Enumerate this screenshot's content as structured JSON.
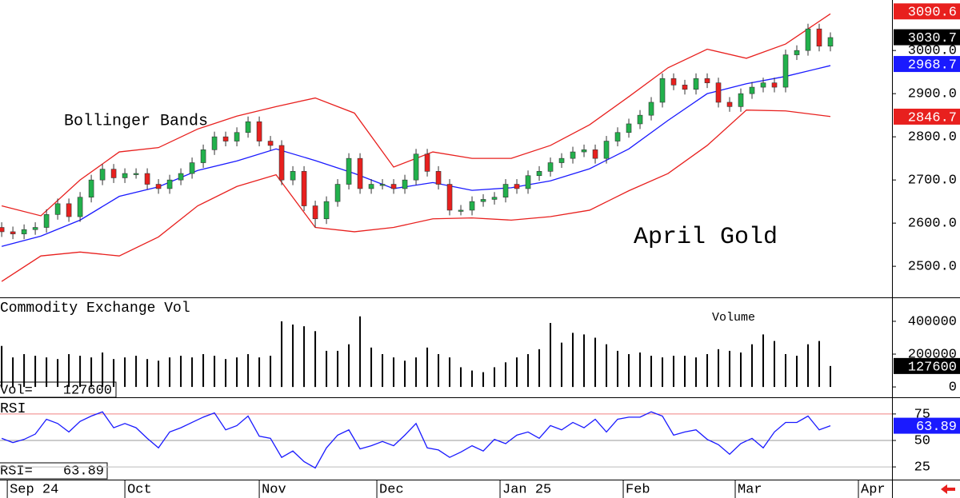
{
  "chart_data": [
    {
      "type": "candlestick",
      "annotations": [
        "Bollinger Bands",
        "April Gold"
      ],
      "ylim": [
        2428,
        3117
      ],
      "yticks": [
        {
          "value": 2500,
          "label": "2500.0"
        },
        {
          "value": 2600,
          "label": "2600.0"
        },
        {
          "value": 2700,
          "label": "2700.0"
        },
        {
          "value": 2800,
          "label": "2800.0"
        },
        {
          "value": 2900,
          "label": "2900.0"
        },
        {
          "value": 3000,
          "label": "3000.0"
        }
      ],
      "up_color": "#22b14c",
      "down_color": "#e8201e",
      "x": [
        0,
        2,
        4,
        6,
        8,
        10,
        12,
        14,
        16,
        18,
        20,
        22,
        24,
        26,
        28,
        30,
        32,
        34,
        36,
        38,
        40,
        42,
        44,
        46,
        48,
        50,
        52,
        54,
        56,
        58,
        60,
        62,
        64,
        66,
        68,
        70,
        72,
        74,
        76,
        78,
        80,
        82,
        84,
        86,
        88,
        90,
        92,
        94,
        96,
        98,
        100,
        102,
        104,
        106,
        108,
        110,
        112,
        114,
        116,
        118,
        120,
        122,
        124,
        126,
        128,
        130,
        132,
        134,
        136,
        138,
        140,
        142,
        144,
        146,
        148
      ],
      "open": [
        2590,
        2580,
        2575,
        2585,
        2590,
        2620,
        2645,
        2615,
        2660,
        2700,
        2725,
        2705,
        2715,
        2715,
        2690,
        2680,
        2700,
        2715,
        2740,
        2770,
        2800,
        2790,
        2810,
        2835,
        2790,
        2780,
        2700,
        2720,
        2640,
        2610,
        2650,
        2690,
        2750,
        2680,
        2690,
        2690,
        2680,
        2700,
        2760,
        2720,
        2690,
        2630,
        2630,
        2650,
        2655,
        2660,
        2690,
        2680,
        2710,
        2720,
        2740,
        2750,
        2765,
        2770,
        2750,
        2790,
        2810,
        2830,
        2850,
        2880,
        2935,
        2920,
        2910,
        2935,
        2925,
        2880,
        2870,
        2900,
        2915,
        2925,
        2915,
        2990,
        3000,
        3050,
        3010
      ],
      "high": [
        2602,
        2592,
        2597,
        2602,
        2632,
        2657,
        2657,
        2672,
        2712,
        2737,
        2737,
        2727,
        2727,
        2727,
        2702,
        2712,
        2727,
        2752,
        2782,
        2812,
        2812,
        2822,
        2847,
        2847,
        2802,
        2792,
        2732,
        2732,
        2652,
        2662,
        2702,
        2762,
        2762,
        2702,
        2702,
        2702,
        2712,
        2772,
        2772,
        2732,
        2702,
        2642,
        2662,
        2667,
        2672,
        2702,
        2702,
        2722,
        2732,
        2752,
        2762,
        2777,
        2782,
        2782,
        2802,
        2822,
        2842,
        2862,
        2892,
        2947,
        2947,
        2932,
        2947,
        2947,
        2937,
        2892,
        2912,
        2927,
        2937,
        2937,
        3002,
        3012,
        3062,
        3062,
        3042
      ],
      "low": [
        2568,
        2563,
        2563,
        2573,
        2578,
        2608,
        2603,
        2603,
        2648,
        2688,
        2693,
        2693,
        2703,
        2678,
        2668,
        2668,
        2688,
        2703,
        2728,
        2758,
        2778,
        2778,
        2798,
        2778,
        2768,
        2688,
        2688,
        2628,
        2590,
        2598,
        2638,
        2678,
        2668,
        2668,
        2678,
        2668,
        2668,
        2688,
        2708,
        2678,
        2618,
        2618,
        2618,
        2638,
        2643,
        2648,
        2668,
        2668,
        2698,
        2708,
        2728,
        2738,
        2753,
        2738,
        2738,
        2778,
        2798,
        2818,
        2838,
        2868,
        2908,
        2898,
        2898,
        2913,
        2868,
        2858,
        2858,
        2888,
        2903,
        2903,
        2903,
        2978,
        2988,
        2998,
        2998
      ],
      "close": [
        2580,
        2575,
        2585,
        2590,
        2620,
        2645,
        2615,
        2660,
        2700,
        2725,
        2705,
        2715,
        2715,
        2690,
        2680,
        2700,
        2715,
        2740,
        2770,
        2800,
        2790,
        2810,
        2835,
        2790,
        2780,
        2700,
        2720,
        2640,
        2610,
        2650,
        2690,
        2750,
        2680,
        2690,
        2690,
        2680,
        2700,
        2760,
        2720,
        2690,
        2630,
        2630,
        2650,
        2655,
        2660,
        2690,
        2680,
        2710,
        2720,
        2740,
        2750,
        2765,
        2770,
        2750,
        2790,
        2810,
        2830,
        2850,
        2880,
        2935,
        2920,
        2910,
        2935,
        2925,
        2880,
        2870,
        2900,
        2915,
        2925,
        2915,
        2990,
        3000,
        3050,
        3010,
        3030
      ],
      "bands_x": [
        0,
        7,
        14,
        21,
        28,
        35,
        42,
        49,
        56,
        63,
        70,
        77,
        84,
        91,
        98,
        105,
        112,
        119,
        126,
        133,
        140,
        148
      ],
      "bands": [
        {
          "color": "#e8201e",
          "values": [
            2640,
            2617,
            2700,
            2765,
            2775,
            2818,
            2848,
            2870,
            2890,
            2855,
            2730,
            2765,
            2750,
            2750,
            2780,
            2828,
            2893,
            2960,
            3003,
            2982,
            3015,
            3085
          ]
        },
        {
          "color": "#1a1aff",
          "values": [
            2546,
            2570,
            2607,
            2662,
            2684,
            2722,
            2744,
            2772,
            2745,
            2715,
            2680,
            2694,
            2676,
            2682,
            2698,
            2726,
            2772,
            2838,
            2900,
            2923,
            2940,
            2965
          ]
        },
        {
          "color": "#e8201e",
          "values": [
            2465,
            2524,
            2533,
            2524,
            2568,
            2640,
            2685,
            2712,
            2590,
            2580,
            2590,
            2610,
            2612,
            2607,
            2615,
            2630,
            2675,
            2715,
            2780,
            2862,
            2860,
            2847
          ]
        }
      ],
      "tags": [
        {
          "value": 3090.6,
          "color": "#e8201e"
        },
        {
          "value": 3030.7,
          "color": "#000000"
        },
        {
          "value": 2968.7,
          "color": "#1a1aff"
        },
        {
          "value": 2846.7,
          "color": "#e8201e"
        }
      ]
    },
    {
      "type": "bar",
      "title": "Commodity Exchange Vol",
      "annotation": "Volume",
      "readout_label": "Vol=",
      "readout_value": 127600,
      "color": "#000000",
      "ylim": [
        -63000,
        541000
      ],
      "yticks": [
        0,
        200000,
        400000
      ],
      "values": [
        250000,
        180000,
        200000,
        190000,
        180000,
        170000,
        200000,
        190000,
        180000,
        210000,
        170000,
        180000,
        190000,
        170000,
        160000,
        180000,
        190000,
        180000,
        200000,
        190000,
        170000,
        180000,
        200000,
        180000,
        190000,
        400000,
        380000,
        370000,
        340000,
        220000,
        220000,
        260000,
        430000,
        240000,
        200000,
        180000,
        160000,
        180000,
        240000,
        200000,
        180000,
        120000,
        100000,
        90000,
        120000,
        150000,
        180000,
        200000,
        230000,
        390000,
        270000,
        330000,
        320000,
        300000,
        260000,
        220000,
        200000,
        210000,
        190000,
        180000,
        190000,
        190000,
        180000,
        200000,
        230000,
        220000,
        210000,
        260000,
        320000,
        280000,
        200000,
        190000,
        260000,
        280000,
        127600
      ],
      "tags": [
        {
          "value": 127600,
          "color": "#000000"
        }
      ]
    },
    {
      "type": "line",
      "title": "RSI",
      "readout_label": "RSI=",
      "readout_value": 63.89,
      "color": "#1a1aff",
      "ylim": [
        13,
        90
      ],
      "yticks": [
        25,
        50,
        75
      ],
      "grid": true,
      "grid_colors": [
        "#bbbbbb",
        "#999999",
        "#f08080"
      ],
      "values": [
        52,
        48,
        51,
        56,
        70,
        66,
        58,
        68,
        73,
        77,
        62,
        66,
        62,
        52,
        43,
        58,
        62,
        67,
        72,
        76,
        60,
        64,
        73,
        54,
        52,
        34,
        40,
        30,
        24,
        43,
        55,
        60,
        42,
        45,
        49,
        45,
        55,
        66,
        43,
        41,
        34,
        39,
        45,
        40,
        51,
        47,
        55,
        58,
        52,
        64,
        60,
        67,
        62,
        70,
        58,
        70,
        72,
        72,
        77,
        73,
        55,
        58,
        60,
        51,
        46,
        37,
        47,
        52,
        43,
        58,
        67,
        67,
        73,
        60,
        63.89
      ],
      "tags": [
        {
          "value": 63.89,
          "color": "#1a1aff"
        }
      ],
      "xlim": [
        -0.3,
        159
      ],
      "xticks": [
        {
          "value": 1,
          "label": "Sep 24"
        },
        {
          "value": 22,
          "label": "Oct"
        },
        {
          "value": 46,
          "label": "Nov"
        },
        {
          "value": 67,
          "label": "Dec"
        },
        {
          "value": 89,
          "label": "Jan 25"
        },
        {
          "value": 111,
          "label": "Feb"
        },
        {
          "value": 131,
          "label": "Mar"
        },
        {
          "value": 153,
          "label": "Apr"
        }
      ]
    }
  ]
}
